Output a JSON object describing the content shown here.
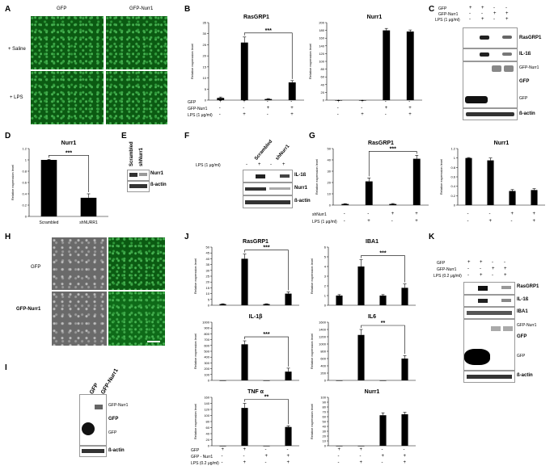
{
  "panels": {
    "A": "A",
    "B": "B",
    "C": "C",
    "D": "D",
    "E": "E",
    "F": "F",
    "G": "G",
    "H": "H",
    "I": "I",
    "J": "J",
    "K": "K"
  },
  "A": {
    "col1": "GFP",
    "col2": "GFP-Nurr1",
    "row1": "+ Saline",
    "row2": "+ LPS"
  },
  "H": {
    "row1": "GFP",
    "row2": "GFP-Nurr1"
  },
  "C": {
    "head": [
      "GFP",
      "GFP-Nurr1",
      "LPS (1 μg/ml)"
    ],
    "signs": [
      [
        "+",
        "+",
        "-",
        "-"
      ],
      [
        "-",
        "-",
        "+",
        "+"
      ],
      [
        "-",
        "+",
        "-",
        "+"
      ]
    ],
    "bands": [
      "RasGRP1",
      "IL-1ß",
      "GFP-Nurr1",
      "GFP",
      "GFP",
      "ß-actin"
    ]
  },
  "E": {
    "lanes": [
      "Scrambled",
      "shNurr1"
    ],
    "bands": [
      "Nurr1",
      "ß-actin"
    ]
  },
  "F": {
    "lanes": [
      "Scrambled",
      "shNurr1"
    ],
    "lps": "LPS (1 μg/ml)",
    "signs": [
      "-",
      "+",
      "-",
      "+"
    ],
    "bands": [
      "IL-1ß",
      "Nurr1",
      "ß-actin"
    ]
  },
  "I": {
    "lanes": [
      "GFP",
      "GFP-Nurr1"
    ],
    "bands": [
      "GFP-Nurr1",
      "GFP",
      "GFP",
      "ß-actin"
    ]
  },
  "K": {
    "head": [
      "GFP",
      "GFP-Nurr1",
      "LPS (0.2 μg/ml)"
    ],
    "signs": [
      [
        "+",
        "+",
        "-",
        "-"
      ],
      [
        "-",
        "-",
        "+",
        "+"
      ],
      [
        "-",
        "+",
        "-",
        "+"
      ]
    ],
    "bands": [
      "RasGRP1",
      "IL-1ß",
      "IBA1",
      "GFP-Nurr1",
      "GFP",
      "GFP",
      "ß-actin"
    ]
  },
  "B_rows": [
    {
      "label": "GFP",
      "signs": [
        "+",
        "+",
        "-",
        "-"
      ]
    },
    {
      "label": "GFP-Nurr1",
      "signs": [
        "-",
        "-",
        "+",
        "+"
      ]
    },
    {
      "label": "LPS (1 μg/ml)",
      "signs": [
        "-",
        "+",
        "-",
        "+"
      ]
    }
  ],
  "G_rows": [
    {
      "label": "shNurr1",
      "signs": [
        "-",
        "-",
        "+",
        "+"
      ]
    },
    {
      "label": "LPS (1 μg/ml)",
      "signs": [
        "-",
        "+",
        "-",
        "+"
      ]
    }
  ],
  "J_rows": [
    {
      "label": "GFP",
      "signs": [
        "+",
        "+",
        "-",
        "-"
      ]
    },
    {
      "label": "GFP - Nurr1",
      "signs": [
        "-",
        "-",
        "+",
        "+"
      ]
    },
    {
      "label": "LPS (0.2 μg/ml)",
      "signs": [
        "-",
        "+",
        "-",
        "+"
      ]
    }
  ],
  "ylabel_rel": "Relative expression level",
  "chart_data": [
    {
      "id": "B1",
      "type": "bar",
      "title": "RasGRP1",
      "ylabel": "Relative expression level",
      "ylim": [
        0,
        35
      ],
      "ticks": [
        0,
        5,
        10,
        15,
        20,
        25,
        30,
        35
      ],
      "values": [
        1,
        26,
        0.5,
        8
      ],
      "errors": [
        0.4,
        2.5,
        0.2,
        0.8
      ],
      "sig": "***",
      "sig_pair": [
        1,
        3
      ]
    },
    {
      "id": "B2",
      "type": "bar",
      "title": "Nurr1",
      "ylabel": "Relative expression level",
      "ylim": [
        0,
        200
      ],
      "ticks": [
        0,
        20,
        40,
        60,
        80,
        100,
        120,
        140,
        160,
        180,
        200
      ],
      "values": [
        0,
        0,
        180,
        177
      ],
      "errors": [
        0,
        0,
        5,
        4
      ]
    },
    {
      "id": "D",
      "type": "bar",
      "title": "Nurr1",
      "ylabel": "Relative expression level",
      "ylim": [
        0,
        1.2
      ],
      "ticks": [
        0,
        0.2,
        0.4,
        0.6,
        0.8,
        1,
        1.2
      ],
      "categories": [
        "Scrambled",
        "shNURR1"
      ],
      "values": [
        1,
        0.33
      ],
      "errors": [
        0.01,
        0.07
      ],
      "sig": "***",
      "sig_pair": [
        0,
        1
      ]
    },
    {
      "id": "G1",
      "type": "bar",
      "title": "RasGRP1",
      "ylabel": "Relative expression level",
      "ylim": [
        0,
        50
      ],
      "ticks": [
        0,
        10,
        20,
        30,
        40,
        50
      ],
      "values": [
        1,
        21,
        1,
        41
      ],
      "errors": [
        0.3,
        3,
        0.4,
        3
      ],
      "sig": "***",
      "sig_pair": [
        1,
        3
      ]
    },
    {
      "id": "G2",
      "type": "bar",
      "title": "Nurr1",
      "ylabel": "Relative expression level",
      "ylim": [
        0,
        1.2
      ],
      "ticks": [
        0,
        0.2,
        0.4,
        0.6,
        0.8,
        1,
        1.2
      ],
      "values": [
        1,
        0.95,
        0.3,
        0.32
      ],
      "errors": [
        0.01,
        0.05,
        0.03,
        0.03
      ]
    },
    {
      "id": "J1",
      "type": "bar",
      "title": "RasGRP1",
      "ylabel": "Relative expression level",
      "ylim": [
        0,
        50
      ],
      "ticks": [
        0,
        5,
        10,
        15,
        20,
        25,
        30,
        35,
        40,
        45,
        50
      ],
      "values": [
        1,
        40,
        1,
        10
      ],
      "errors": [
        0.3,
        4,
        0.3,
        1.5
      ],
      "sig": "***",
      "sig_pair": [
        1,
        3
      ]
    },
    {
      "id": "J2",
      "type": "bar",
      "title": "IBA1",
      "ylabel": "Relative expression level",
      "ylim": [
        0,
        6
      ],
      "ticks": [
        0,
        1,
        2,
        3,
        4,
        5,
        6
      ],
      "values": [
        1,
        4,
        1,
        1.8
      ],
      "errors": [
        0.1,
        0.7,
        0.1,
        0.4
      ],
      "sig": "***",
      "sig_pair": [
        1,
        3
      ]
    },
    {
      "id": "J3",
      "type": "bar",
      "title": "IL-1β",
      "ylabel": "Relative expression level",
      "ylim": [
        0,
        1000
      ],
      "ticks": [
        0,
        100,
        200,
        300,
        400,
        500,
        600,
        700,
        800,
        900,
        1000
      ],
      "values": [
        0,
        620,
        0,
        150
      ],
      "errors": [
        0,
        60,
        0,
        60
      ],
      "sig": "***",
      "sig_pair": [
        1,
        3
      ]
    },
    {
      "id": "J4",
      "type": "bar",
      "title": "IL6",
      "ylabel": "Relative expression level",
      "ylim": [
        0,
        1600
      ],
      "ticks": [
        0,
        200,
        400,
        600,
        800,
        1000,
        1200,
        1400,
        1600
      ],
      "values": [
        0,
        1250,
        0,
        600
      ],
      "errors": [
        0,
        150,
        0,
        80
      ],
      "sig": "**",
      "sig_pair": [
        1,
        3
      ]
    },
    {
      "id": "J5",
      "type": "bar",
      "title": "TNF α",
      "ylabel": "Relative expression level",
      "ylim": [
        0,
        160
      ],
      "ticks": [
        0,
        20,
        40,
        60,
        80,
        100,
        120,
        140,
        160
      ],
      "values": [
        0,
        125,
        0,
        62
      ],
      "errors": [
        0,
        15,
        0,
        4
      ],
      "sig": "**",
      "sig_pair": [
        1,
        3
      ]
    },
    {
      "id": "J6",
      "type": "bar",
      "title": "Nurr1",
      "ylabel": "Relative expression level",
      "ylim": [
        0,
        100
      ],
      "ticks": [
        0,
        10,
        20,
        30,
        40,
        50,
        60,
        70,
        80,
        90,
        100
      ],
      "values": [
        0,
        0,
        63,
        65
      ],
      "errors": [
        0,
        0,
        5,
        4
      ]
    }
  ]
}
